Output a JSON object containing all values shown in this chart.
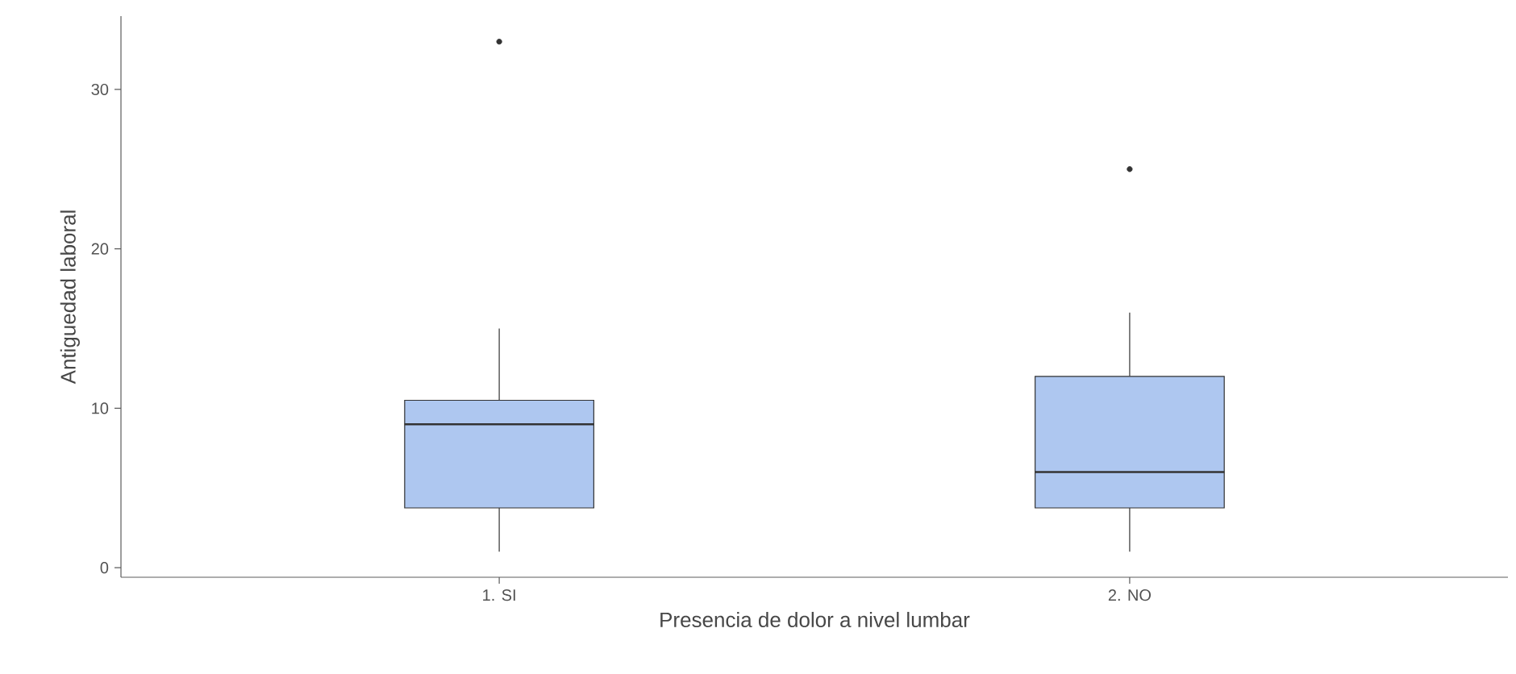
{
  "chart_data": {
    "type": "box",
    "xlabel": "Presencia de dolor a nivel lumbar",
    "ylabel": "Antiguedad laboral",
    "categories": [
      "1. SI",
      "2. NO"
    ],
    "boxes": [
      {
        "low": 1,
        "q1": 3.75,
        "median": 9,
        "q3": 10.5,
        "high": 15,
        "outliers": [
          33
        ]
      },
      {
        "low": 1,
        "q1": 3.75,
        "median": 6,
        "q3": 12,
        "high": 16,
        "outliers": [
          25
        ]
      }
    ],
    "color": "#aec7f0",
    "ylim": [
      -0.6,
      34.6
    ],
    "yticks": [
      0,
      10,
      20,
      30
    ],
    "grid": false
  }
}
